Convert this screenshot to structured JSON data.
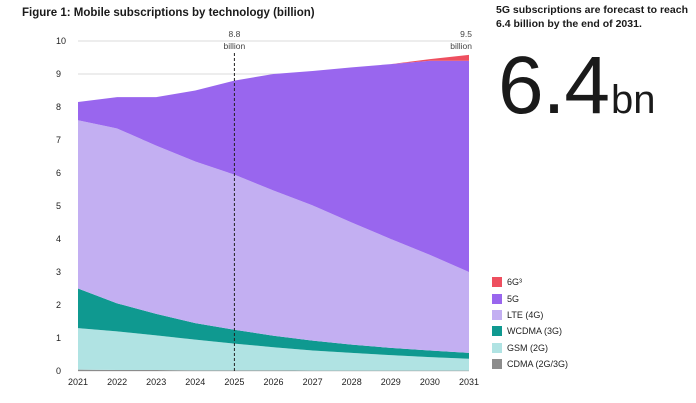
{
  "chart_data": {
    "type": "area",
    "stacked": true,
    "title": "Figure 1: Mobile subscriptions by technology (billion)",
    "x": [
      2021,
      2022,
      2023,
      2024,
      2025,
      2026,
      2027,
      2028,
      2029,
      2030,
      2031
    ],
    "ylim": [
      0,
      10
    ],
    "yticks": [
      0,
      1,
      2,
      3,
      4,
      5,
      6,
      7,
      8,
      9,
      10
    ],
    "grid": true,
    "series": [
      {
        "name": "CDMA (2G/3G)",
        "color": "#8c8c8c",
        "values": [
          0.04,
          0.03,
          0.03,
          0.02,
          0.02,
          0.02,
          0.01,
          0.01,
          0.01,
          0.01,
          0.01
        ]
      },
      {
        "name": "GSM (2G)",
        "color": "#b0e3e3",
        "values": [
          1.26,
          1.17,
          1.05,
          0.93,
          0.81,
          0.7,
          0.61,
          0.54,
          0.47,
          0.41,
          0.36
        ]
      },
      {
        "name": "WCDMA (3G)",
        "color": "#0f9990",
        "values": [
          1.2,
          0.85,
          0.65,
          0.5,
          0.42,
          0.35,
          0.3,
          0.25,
          0.22,
          0.2,
          0.18
        ]
      },
      {
        "name": "LTE (4G)",
        "color": "#c3aff2",
        "values": [
          5.1,
          5.3,
          5.1,
          4.9,
          4.7,
          4.4,
          4.1,
          3.7,
          3.3,
          2.9,
          2.45
        ]
      },
      {
        "name": "5G",
        "color": "#9966ee",
        "values": [
          0.55,
          0.95,
          1.47,
          2.15,
          2.85,
          3.53,
          4.07,
          4.7,
          5.3,
          5.88,
          6.4
        ]
      },
      {
        "name": "6G³",
        "color": "#ee4f5f",
        "values": [
          0,
          0,
          0,
          0,
          0,
          0,
          0,
          0,
          0,
          0.05,
          0.18
        ]
      }
    ],
    "annotations": [
      {
        "x": 2025,
        "value": "8.8",
        "label": "billion"
      },
      {
        "x": 2031,
        "value": "9.5",
        "label": "billion"
      }
    ]
  },
  "headline": {
    "text": "5G subscriptions are forecast to reach 6.4 billion by the end of 2031.",
    "value": "6.4",
    "unit": "bn"
  }
}
